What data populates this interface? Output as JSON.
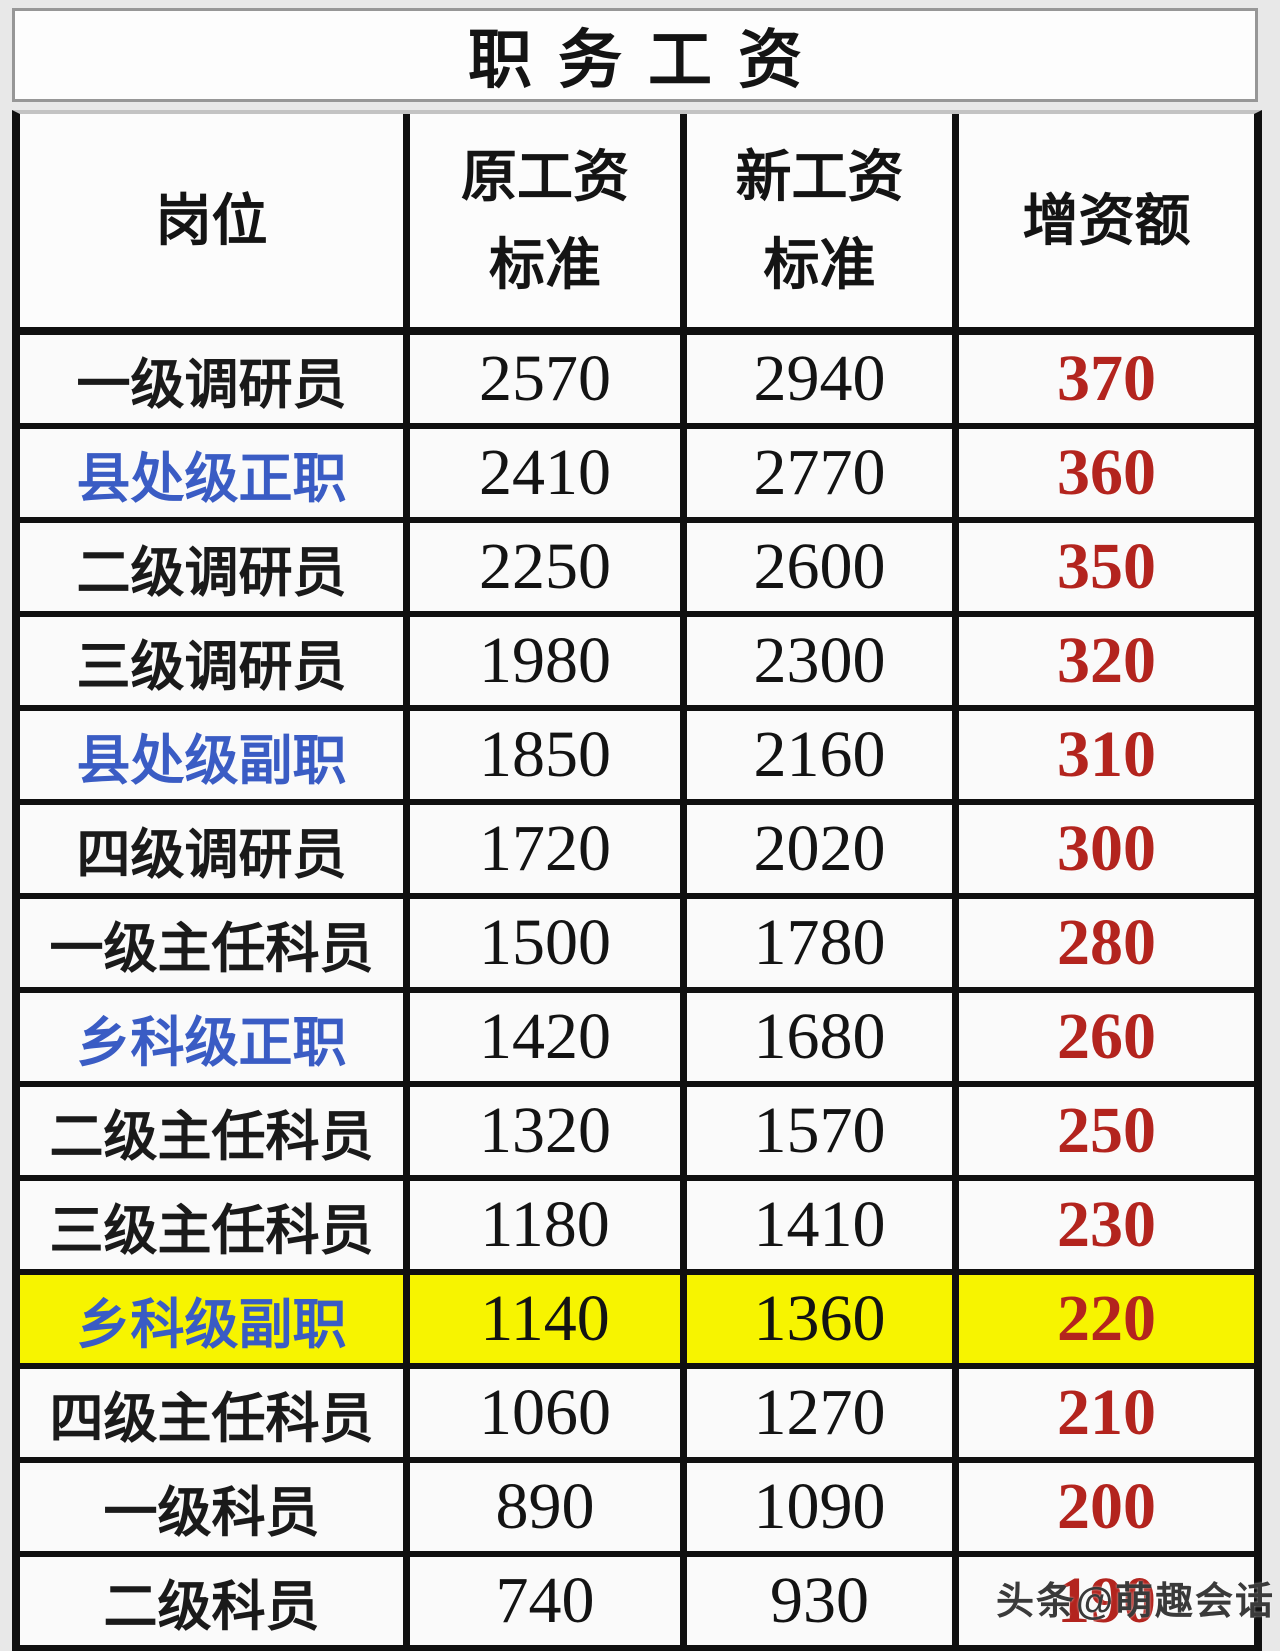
{
  "title": "职务工资",
  "table": {
    "header": {
      "col1": {
        "lines": [
          "岗位"
        ]
      },
      "col2": {
        "lines": [
          "原工资",
          "标准"
        ]
      },
      "col3": {
        "lines": [
          "新工资",
          "标准"
        ]
      },
      "col4": {
        "lines": [
          "增资额"
        ]
      }
    },
    "rows": [
      {
        "label": "一级调研员",
        "old": "2570",
        "new": "2940",
        "increase": "370",
        "label_color": "black",
        "highlight": false
      },
      {
        "label": "县处级正职",
        "old": "2410",
        "new": "2770",
        "increase": "360",
        "label_color": "blue",
        "highlight": false
      },
      {
        "label": "二级调研员",
        "old": "2250",
        "new": "2600",
        "increase": "350",
        "label_color": "black",
        "highlight": false
      },
      {
        "label": "三级调研员",
        "old": "1980",
        "new": "2300",
        "increase": "320",
        "label_color": "black",
        "highlight": false
      },
      {
        "label": "县处级副职",
        "old": "1850",
        "new": "2160",
        "increase": "310",
        "label_color": "blue",
        "highlight": false
      },
      {
        "label": "四级调研员",
        "old": "1720",
        "new": "2020",
        "increase": "300",
        "label_color": "black",
        "highlight": false
      },
      {
        "label": "一级主任科员",
        "old": "1500",
        "new": "1780",
        "increase": "280",
        "label_color": "black",
        "highlight": false
      },
      {
        "label": "乡科级正职",
        "old": "1420",
        "new": "1680",
        "increase": "260",
        "label_color": "blue",
        "highlight": false
      },
      {
        "label": "二级主任科员",
        "old": "1320",
        "new": "1570",
        "increase": "250",
        "label_color": "black",
        "highlight": false
      },
      {
        "label": "三级主任科员",
        "old": "1180",
        "new": "1410",
        "increase": "230",
        "label_color": "black",
        "highlight": false
      },
      {
        "label": "乡科级副职",
        "old": "1140",
        "new": "1360",
        "increase": "220",
        "label_color": "blue",
        "highlight": true
      },
      {
        "label": "四级主任科员",
        "old": "1060",
        "new": "1270",
        "increase": "210",
        "label_color": "black",
        "highlight": false
      },
      {
        "label": "一级科员",
        "old": "890",
        "new": "1090",
        "increase": "200",
        "label_color": "black",
        "highlight": false
      },
      {
        "label": "二级科员",
        "old": "740",
        "new": "930",
        "increase": "190",
        "label_color": "black",
        "highlight": false
      }
    ]
  },
  "watermark": "头条@萌趣会话",
  "colors": {
    "blue_label": "#3a5cc4",
    "red_increase": "#b3241e",
    "yellow_highlight": "#f7f400",
    "border": "#101010",
    "page_background": "#e8e8e8"
  }
}
